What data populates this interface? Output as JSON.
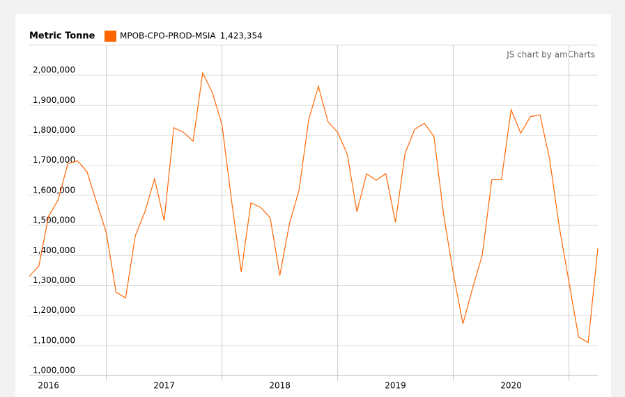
{
  "chart_data": {
    "type": "line",
    "y_axis_title": "Metric Tonne",
    "credit": "JS chart by amCharts",
    "categories": [
      null,
      null,
      "2016",
      null,
      null,
      null,
      null,
      null,
      null,
      null,
      null,
      null,
      null,
      null,
      "2017",
      null,
      null,
      null,
      null,
      null,
      null,
      null,
      null,
      null,
      null,
      null,
      "2018",
      null,
      null,
      null,
      null,
      null,
      null,
      null,
      null,
      null,
      null,
      null,
      "2019",
      null,
      null,
      null,
      null,
      null,
      null,
      null,
      null,
      null,
      null,
      null,
      "2020",
      null,
      null,
      null,
      null,
      null,
      null,
      null,
      null,
      null
    ],
    "series": [
      {
        "name": "MPOB-CPO-PROD-MSIA",
        "color": "#ff6600",
        "last_value_label": "1,423,354",
        "values": [
          1330000,
          1365000,
          1530000,
          1585000,
          1705000,
          1715000,
          1678000,
          1575000,
          1475000,
          1278000,
          1258000,
          1465000,
          1545000,
          1655000,
          1515000,
          1825000,
          1810000,
          1780000,
          2008000,
          1942000,
          1835000,
          1580000,
          1345000,
          1575000,
          1560000,
          1525000,
          1333000,
          1505000,
          1618000,
          1852000,
          1963000,
          1845000,
          1810000,
          1737000,
          1545000,
          1672000,
          1650000,
          1672000,
          1510000,
          1740000,
          1820000,
          1840000,
          1795000,
          1535000,
          1340000,
          1172000,
          1290000,
          1400000,
          1652000,
          1652000,
          1885000,
          1807000,
          1862000,
          1868000,
          1720000,
          1495000,
          1312000,
          1128000,
          1110000,
          1423354
        ]
      }
    ],
    "ylim": [
      1000000,
      2100000
    ],
    "yticks": [
      {
        "value": 1000000,
        "label": "1,000,000"
      },
      {
        "value": 1100000,
        "label": "1,100,000"
      },
      {
        "value": 1200000,
        "label": "1,200,000"
      },
      {
        "value": 1300000,
        "label": "1,300,000"
      },
      {
        "value": 1400000,
        "label": "1,400,000"
      },
      {
        "value": 1500000,
        "label": "1,500,000"
      },
      {
        "value": 1600000,
        "label": "1,600,000"
      },
      {
        "value": 1700000,
        "label": "1,700,000"
      },
      {
        "value": 1800000,
        "label": "1,800,000"
      },
      {
        "value": 1900000,
        "label": "1,900,000"
      },
      {
        "value": 2000000,
        "label": "2,000,000"
      }
    ],
    "grid": true
  }
}
